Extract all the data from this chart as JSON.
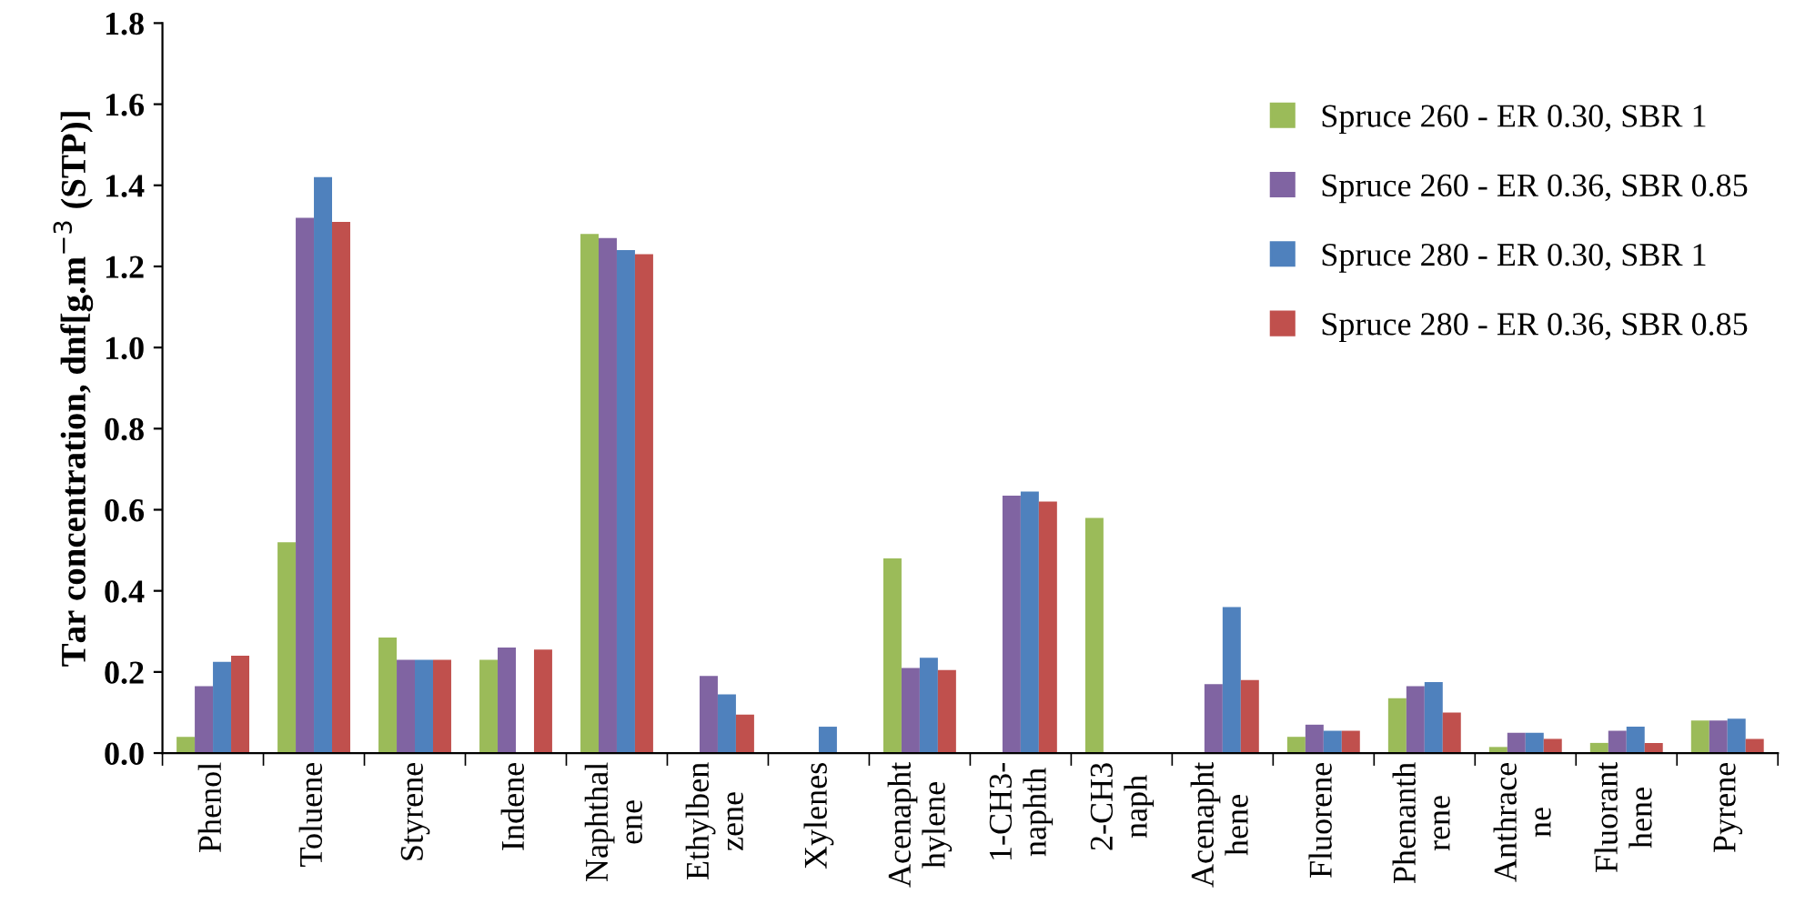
{
  "chart_data": {
    "type": "bar",
    "ylabel": "Tar concentration, dnf[g.m$^{−3}$ (STP)]",
    "categories": [
      "Phenol",
      "Toluene",
      "Styrene",
      "Indene",
      "Naphthal\nene",
      "Ethylben\nzene",
      "Xylenes",
      "Acenapht\nhylene",
      "1-CH3-\nnaphth",
      "2-CH3\nnaph",
      "Acenapht\nhene",
      "Fluorene",
      "Phenanth\nrene",
      "Anthrace\nne",
      "Fluorant\nhene",
      "Pyrene"
    ],
    "series": [
      {
        "name": "Spruce 260 - ER 0.30, SBR 1",
        "color": "#9bbb59",
        "values": [
          0.04,
          0.52,
          0.285,
          0.23,
          1.28,
          0,
          0,
          0.48,
          0,
          0.58,
          0,
          0.04,
          0.135,
          0.015,
          0.025,
          0.08
        ]
      },
      {
        "name": "Spruce 260 - ER 0.36, SBR 0.85",
        "color": "#8064a2",
        "values": [
          0.165,
          1.32,
          0.23,
          0.26,
          1.27,
          0.19,
          null,
          0.21,
          0.635,
          0,
          0.17,
          0.07,
          0.165,
          0.05,
          0.055,
          0.08
        ]
      },
      {
        "name": "Spruce 280 - ER 0.30, SBR 1",
        "color": "#4f81bd",
        "values": [
          0.225,
          1.42,
          0.23,
          null,
          1.24,
          0.145,
          0.065,
          0.235,
          0.645,
          0,
          0.36,
          0.055,
          0.175,
          0.05,
          0.065,
          0.085
        ]
      },
      {
        "name": "Spruce 280 - ER 0.36, SBR 0.85",
        "color": "#c0504d",
        "values": [
          0.24,
          1.31,
          0.23,
          0.255,
          1.23,
          0.095,
          null,
          0.205,
          0.62,
          0,
          0.18,
          0.055,
          0.1,
          0.035,
          0.025,
          0.035
        ]
      }
    ],
    "ylim": [
      0,
      1.8
    ],
    "yticks": [
      {
        "value": 0,
        "label": "0.0"
      },
      {
        "value": 0.2,
        "label": "0.2"
      },
      {
        "value": 0.4,
        "label": "0.4"
      },
      {
        "value": 0.6,
        "label": "0.6"
      },
      {
        "value": 0.8,
        "label": "0.8"
      },
      {
        "value": 1.0,
        "label": "1.0"
      },
      {
        "value": 1.2,
        "label": "1.2"
      },
      {
        "value": 1.4,
        "label": "1.4"
      },
      {
        "value": 1.6,
        "label": "1.6"
      },
      {
        "value": 1.8,
        "label": "1.8"
      }
    ],
    "legend": "top right"
  }
}
